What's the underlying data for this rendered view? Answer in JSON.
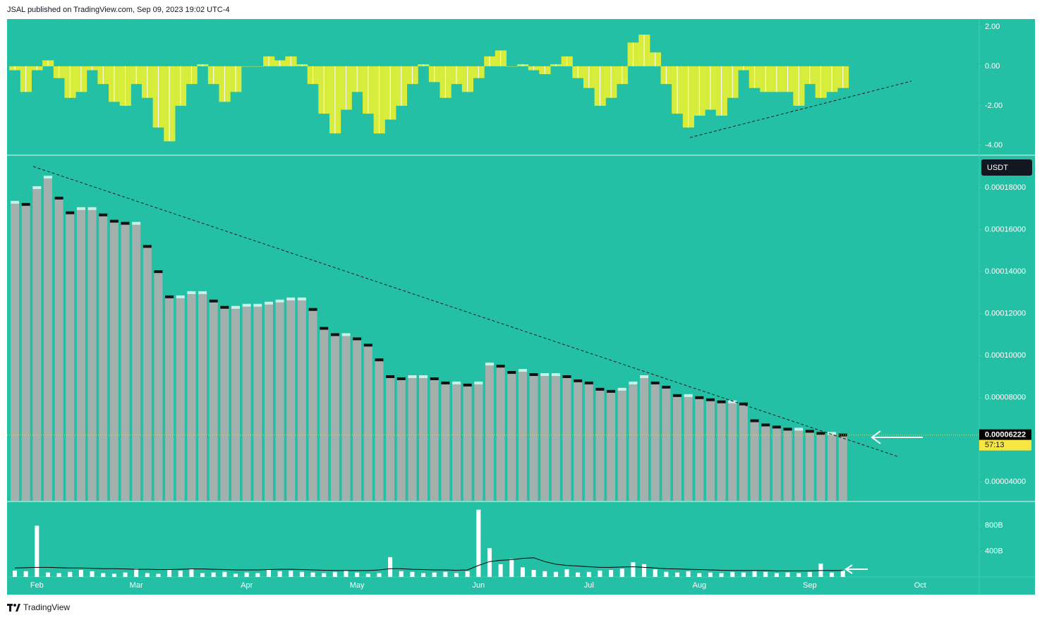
{
  "header": "JSAL published on TradingView.com, Sep 09, 2023 19:02 UTC-4",
  "footer": "TradingView",
  "currency": "USDT",
  "last_price_label": "0.00006222",
  "countdown": "57:13",
  "chart_data": [
    {
      "type": "area",
      "color": "#d8ec3c",
      "ylim": [
        -4.43,
        2.39
      ],
      "yticks": [
        {
          "value": -4,
          "label": "-4.00"
        },
        {
          "value": -2,
          "label": "-2.00"
        },
        {
          "value": 0,
          "label": "0.00"
        },
        {
          "value": 2,
          "label": "2.00"
        }
      ],
      "values": [
        -0.2,
        -1.3,
        -0.2,
        0.3,
        -0.6,
        -1.6,
        -1.3,
        -0.2,
        -0.9,
        -1.8,
        -2.0,
        -0.9,
        -1.6,
        -3.1,
        -3.8,
        -2.0,
        -0.9,
        0.1,
        -0.9,
        -1.8,
        -1.3,
        0.0,
        0.0,
        0.5,
        0.3,
        0.5,
        0.1,
        -0.9,
        -2.4,
        -3.4,
        -2.2,
        -1.3,
        -2.4,
        -3.4,
        -2.7,
        -2.0,
        -0.9,
        0.1,
        -0.8,
        -1.6,
        -0.9,
        -1.3,
        -0.6,
        0.5,
        0.8,
        0.0,
        0.1,
        -0.2,
        -0.4,
        0.1,
        0.5,
        -0.6,
        -1.1,
        -2.0,
        -1.6,
        -0.9,
        1.2,
        1.6,
        0.7,
        -0.9,
        -2.4,
        -3.1,
        -2.5,
        -2.2,
        -2.5,
        -1.6,
        -0.2,
        -1.1,
        -1.3,
        -1.3,
        -1.3,
        -2.0,
        -0.9,
        -1.6,
        -1.3,
        -1.1,
        null,
        null,
        null,
        null,
        null,
        null,
        null
      ]
    },
    {
      "type": "bar",
      "color": "#a3b0ad",
      "categories": [
        null,
        null,
        "Feb",
        null,
        null,
        null,
        null,
        null,
        null,
        null,
        null,
        "Mar",
        null,
        null,
        null,
        null,
        null,
        null,
        null,
        null,
        null,
        "Apr",
        null,
        null,
        null,
        null,
        null,
        null,
        null,
        null,
        null,
        "May",
        null,
        null,
        null,
        null,
        null,
        null,
        null,
        null,
        null,
        null,
        "Jun",
        null,
        null,
        null,
        null,
        null,
        null,
        null,
        null,
        null,
        "Jul",
        null,
        null,
        null,
        null,
        null,
        null,
        null,
        null,
        null,
        "Aug",
        null,
        null,
        null,
        null,
        null,
        null,
        null,
        null,
        null,
        "Sep",
        null,
        null,
        null,
        null,
        null,
        null,
        null,
        null,
        null,
        "Oct"
      ],
      "ylim": [
        3.09e-05,
        0.0001951
      ],
      "yticks": [
        {
          "value": 4e-05,
          "label": "0.00004000"
        },
        {
          "value": 8e-05,
          "label": "0.00008000"
        },
        {
          "value": 0.0001,
          "label": "0.00010000"
        },
        {
          "value": 0.00012,
          "label": "0.00012000"
        },
        {
          "value": 0.00014,
          "label": "0.00014000"
        },
        {
          "value": 0.00016,
          "label": "0.00016000"
        },
        {
          "value": 0.00018,
          "label": "0.00018000"
        }
      ],
      "values": [
        0.000173,
        0.000172,
        0.00018,
        0.000185,
        0.000175,
        0.000168,
        0.00017,
        0.00017,
        0.000167,
        0.000164,
        0.000163,
        0.000163,
        0.000152,
        0.00014,
        0.000128,
        0.000128,
        0.00013,
        0.00013,
        0.000126,
        0.000123,
        0.000123,
        0.000124,
        0.000124,
        0.000125,
        0.000126,
        0.000127,
        0.000127,
        0.000122,
        0.000113,
        0.00011,
        0.00011,
        0.000108,
        0.000105,
        9.8e-05,
        9e-05,
        8.9e-05,
        9e-05,
        9e-05,
        8.9e-05,
        8.7e-05,
        8.7e-05,
        8.6e-05,
        8.7e-05,
        9.6e-05,
        9.5e-05,
        9.2e-05,
        9.3e-05,
        9.1e-05,
        9.1e-05,
        9.1e-05,
        9e-05,
        8.8e-05,
        8.7e-05,
        8.4e-05,
        8.3e-05,
        8.4e-05,
        8.7e-05,
        9e-05,
        8.7e-05,
        8.5e-05,
        8.1e-05,
        8.1e-05,
        8e-05,
        7.9e-05,
        7.8e-05,
        7.8e-05,
        7.7e-05,
        6.9e-05,
        6.7e-05,
        6.6e-05,
        6.5e-05,
        6.5e-05,
        6.4e-05,
        6.3e-05,
        6.3e-05,
        6.222e-05,
        null,
        null,
        null,
        null,
        null,
        null,
        null
      ]
    },
    {
      "type": "bar",
      "ylim": [
        0,
        1167
      ],
      "yticks": [
        {
          "value": 400,
          "label": "400B"
        },
        {
          "value": 800,
          "label": "800B"
        }
      ],
      "series": [
        {
          "color": "#ffffff",
          "values": [
            100,
            90,
            800,
            70,
            60,
            80,
            110,
            90,
            60,
            50,
            70,
            130,
            60,
            50,
            110,
            100,
            130,
            60,
            70,
            80,
            50,
            70,
            60,
            120,
            90,
            100,
            80,
            70,
            60,
            80,
            100,
            70,
            50,
            60,
            310,
            90,
            80,
            60,
            70,
            80,
            60,
            90,
            1050,
            450,
            200,
            280,
            150,
            110,
            90,
            80,
            120,
            70,
            80,
            100,
            110,
            130,
            230,
            200,
            120,
            80,
            70,
            90,
            60,
            70,
            60,
            80,
            70,
            90,
            80,
            60,
            70,
            60,
            80,
            210,
            70,
            100,
            null,
            null,
            null,
            null,
            null,
            null,
            null
          ]
        },
        {
          "color": "#000000",
          "type": "line",
          "values": [
            140,
            145,
            150,
            150,
            145,
            140,
            140,
            135,
            130,
            130,
            125,
            120,
            120,
            115,
            115,
            120,
            125,
            125,
            120,
            115,
            110,
            110,
            110,
            115,
            120,
            120,
            115,
            110,
            105,
            100,
            100,
            100,
            100,
            110,
            130,
            130,
            120,
            115,
            110,
            110,
            105,
            110,
            180,
            240,
            260,
            270,
            290,
            300,
            240,
            200,
            180,
            170,
            160,
            150,
            150,
            155,
            160,
            150,
            140,
            130,
            125,
            120,
            115,
            110,
            105,
            100,
            100,
            100,
            100,
            95,
            95,
            95,
            95,
            100,
            100,
            100,
            null,
            null,
            null,
            null,
            null,
            null,
            null
          ]
        }
      ]
    }
  ]
}
